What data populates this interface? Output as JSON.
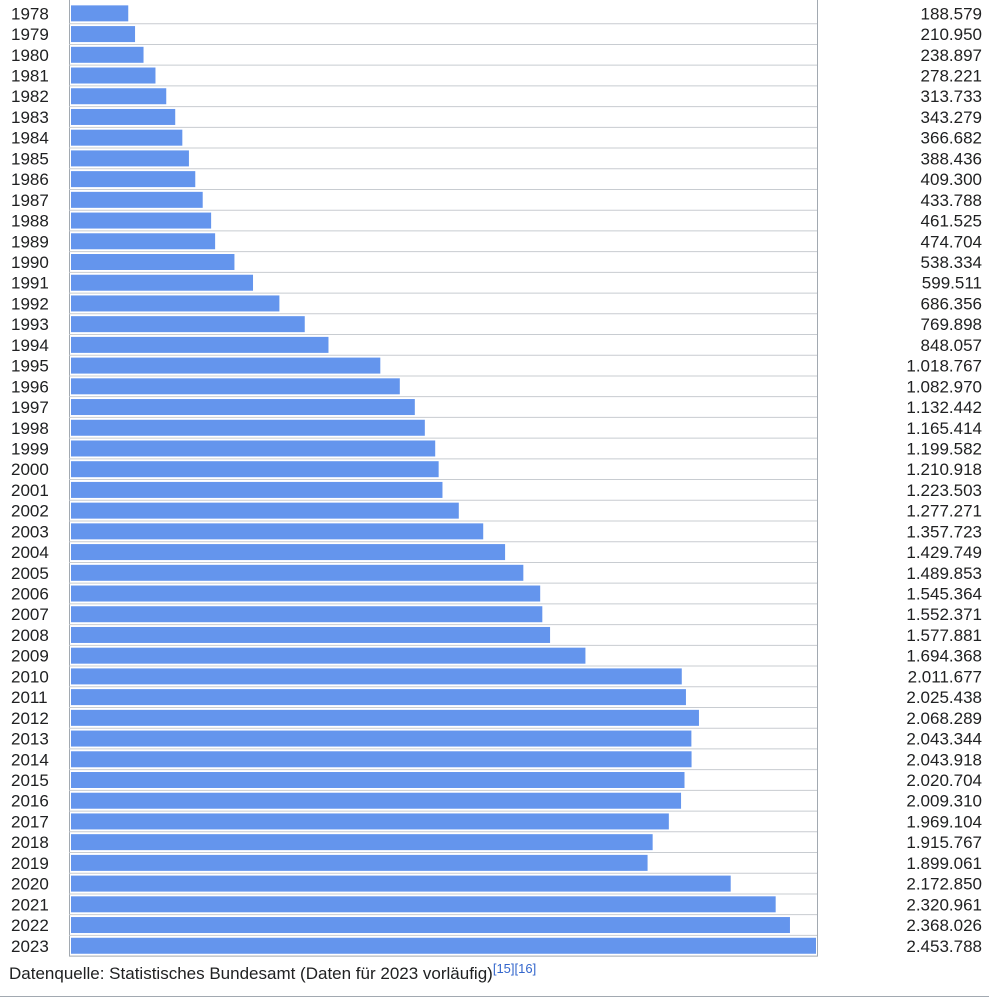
{
  "chart_data": {
    "type": "bar",
    "orientation": "horizontal",
    "categories": [
      "1978",
      "1979",
      "1980",
      "1981",
      "1982",
      "1983",
      "1984",
      "1985",
      "1986",
      "1987",
      "1988",
      "1989",
      "1990",
      "1991",
      "1992",
      "1993",
      "1994",
      "1995",
      "1996",
      "1997",
      "1998",
      "1999",
      "2000",
      "2001",
      "2002",
      "2003",
      "2004",
      "2005",
      "2006",
      "2007",
      "2008",
      "2009",
      "2010",
      "2011",
      "2012",
      "2013",
      "2014",
      "2015",
      "2016",
      "2017",
      "2018",
      "2019",
      "2020",
      "2021",
      "2022",
      "2023"
    ],
    "values": [
      188579,
      210950,
      238897,
      278221,
      313733,
      343279,
      366682,
      388436,
      409300,
      433788,
      461525,
      474704,
      538334,
      599511,
      686356,
      769898,
      848057,
      1018767,
      1082970,
      1132442,
      1165414,
      1199582,
      1210918,
      1223503,
      1277271,
      1357723,
      1429749,
      1489853,
      1545364,
      1552371,
      1577881,
      1694368,
      2011677,
      2025438,
      2068289,
      2043344,
      2043918,
      2020704,
      2009310,
      1969104,
      1915767,
      1899061,
      2172850,
      2320961,
      2368026,
      2453788
    ],
    "value_labels": [
      "188.579",
      "210.950",
      "238.897",
      "278.221",
      "313.733",
      "343.279",
      "366.682",
      "388.436",
      "409.300",
      "433.788",
      "461.525",
      "474.704",
      "538.334",
      "599.511",
      "686.356",
      "769.898",
      "848.057",
      "1.018.767",
      "1.082.970",
      "1.132.442",
      "1.165.414",
      "1.199.582",
      "1.210.918",
      "1.223.503",
      "1.277.271",
      "1.357.723",
      "1.429.749",
      "1.489.853",
      "1.545.364",
      "1.552.371",
      "1.577.881",
      "1.694.368",
      "2.011.677",
      "2.025.438",
      "2.068.289",
      "2.043.344",
      "2.043.918",
      "2.020.704",
      "2.009.310",
      "1.969.104",
      "1.915.767",
      "1.899.061",
      "2.172.850",
      "2.320.961",
      "2.368.026",
      "2.453.788"
    ],
    "xlim": [
      0,
      2453788
    ],
    "bar_color": "#6495ed",
    "title": "",
    "xlabel": "",
    "ylabel": "",
    "legend": "none"
  },
  "footer": {
    "text": "Datenquelle: Statistisches Bundesamt (Daten für 2023 vorläufig)",
    "refs": [
      "[15]",
      "[16]"
    ]
  },
  "colors": {
    "bar": "#6495ed",
    "grid": "#c8ccd1",
    "frame": "#a2a9b1",
    "link": "#3366cc"
  }
}
